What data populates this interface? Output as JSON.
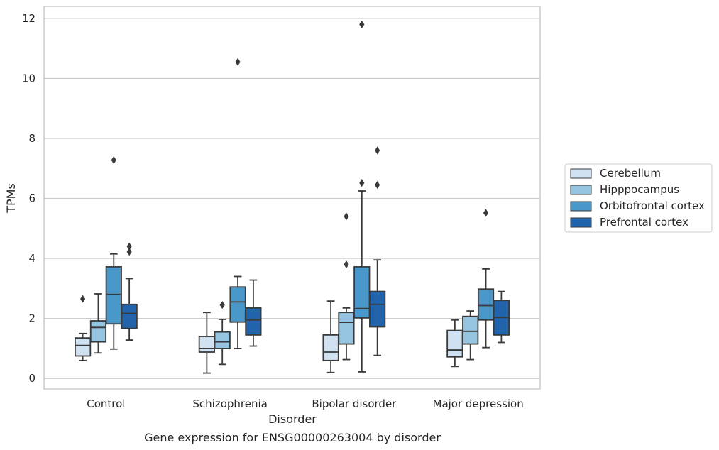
{
  "chart_data": {
    "type": "box",
    "title": "",
    "caption": "Gene expression for ENSG00000263004 by disorder",
    "xlabel": "Disorder",
    "ylabel": "TPMs",
    "ylim": [
      -0.35,
      12.4
    ],
    "yticks": [
      0,
      2,
      4,
      6,
      8,
      10,
      12
    ],
    "grid": "horizontal",
    "legend_position": "right",
    "categories": [
      "Control",
      "Schizophrenia",
      "Bipolar disorder",
      "Major depression"
    ],
    "series": [
      {
        "name": "Cerebellum",
        "color": "#d0e1f2",
        "boxes": [
          {
            "whislo": 0.6,
            "q1": 0.75,
            "med": 1.1,
            "q3": 1.35,
            "whishi": 1.5,
            "fliers": [
              2.65
            ]
          },
          {
            "whislo": 0.18,
            "q1": 0.88,
            "med": 1.0,
            "q3": 1.4,
            "whishi": 2.2,
            "fliers": []
          },
          {
            "whislo": 0.2,
            "q1": 0.6,
            "med": 0.88,
            "q3": 1.45,
            "whishi": 2.58,
            "fliers": []
          },
          {
            "whislo": 0.4,
            "q1": 0.72,
            "med": 0.95,
            "q3": 1.6,
            "whishi": 1.95,
            "fliers": []
          }
        ]
      },
      {
        "name": "Hipppocampus",
        "color": "#94c4df",
        "boxes": [
          {
            "whislo": 0.85,
            "q1": 1.22,
            "med": 1.7,
            "q3": 1.92,
            "whishi": 2.82,
            "fliers": []
          },
          {
            "whislo": 0.47,
            "q1": 1.0,
            "med": 1.22,
            "q3": 1.55,
            "whishi": 1.97,
            "fliers": [
              2.45
            ]
          },
          {
            "whislo": 0.63,
            "q1": 1.15,
            "med": 1.87,
            "q3": 2.2,
            "whishi": 2.35,
            "fliers": [
              3.8,
              5.4
            ]
          },
          {
            "whislo": 0.63,
            "q1": 1.15,
            "med": 1.57,
            "q3": 2.07,
            "whishi": 2.25,
            "fliers": []
          }
        ]
      },
      {
        "name": "Orbitofrontal cortex",
        "color": "#4a98c9",
        "boxes": [
          {
            "whislo": 0.98,
            "q1": 1.82,
            "med": 2.8,
            "q3": 3.72,
            "whishi": 4.15,
            "fliers": [
              7.28
            ]
          },
          {
            "whislo": 1.0,
            "q1": 1.88,
            "med": 2.55,
            "q3": 3.05,
            "whishi": 3.4,
            "fliers": [
              10.55
            ]
          },
          {
            "whislo": 0.22,
            "q1": 2.02,
            "med": 2.33,
            "q3": 3.72,
            "whishi": 6.25,
            "fliers": [
              6.52,
              11.8
            ]
          },
          {
            "whislo": 1.03,
            "q1": 1.95,
            "med": 2.43,
            "q3": 2.98,
            "whishi": 3.65,
            "fliers": [
              5.52
            ]
          }
        ]
      },
      {
        "name": "Prefrontal cortex",
        "color": "#2264ab",
        "boxes": [
          {
            "whislo": 1.28,
            "q1": 1.67,
            "med": 2.17,
            "q3": 2.47,
            "whishi": 3.33,
            "fliers": [
              4.22,
              4.4
            ]
          },
          {
            "whislo": 1.08,
            "q1": 1.45,
            "med": 1.95,
            "q3": 2.35,
            "whishi": 3.28,
            "fliers": []
          },
          {
            "whislo": 0.77,
            "q1": 1.72,
            "med": 2.47,
            "q3": 2.9,
            "whishi": 3.95,
            "fliers": [
              6.45,
              7.6
            ]
          },
          {
            "whislo": 1.2,
            "q1": 1.45,
            "med": 2.03,
            "q3": 2.6,
            "whishi": 2.9,
            "fliers": []
          }
        ]
      }
    ]
  }
}
